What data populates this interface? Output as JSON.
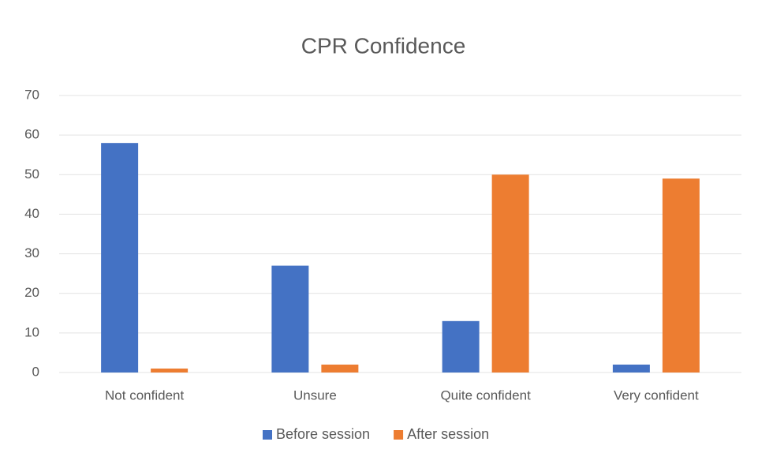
{
  "chart_data": {
    "type": "bar",
    "title": "CPR Confidence",
    "categories": [
      "Not confident",
      "Unsure",
      "Quite confident",
      "Very confident"
    ],
    "series": [
      {
        "name": "Before session",
        "color": "#4472c4",
        "values": [
          58,
          27,
          13,
          2
        ]
      },
      {
        "name": "After session",
        "color": "#ed7d31",
        "values": [
          1,
          2,
          50,
          49
        ]
      }
    ],
    "ylim": [
      0,
      70
    ],
    "yticks": [
      0,
      10,
      20,
      30,
      40,
      50,
      60,
      70
    ],
    "grid": true,
    "legend": "bottom"
  }
}
